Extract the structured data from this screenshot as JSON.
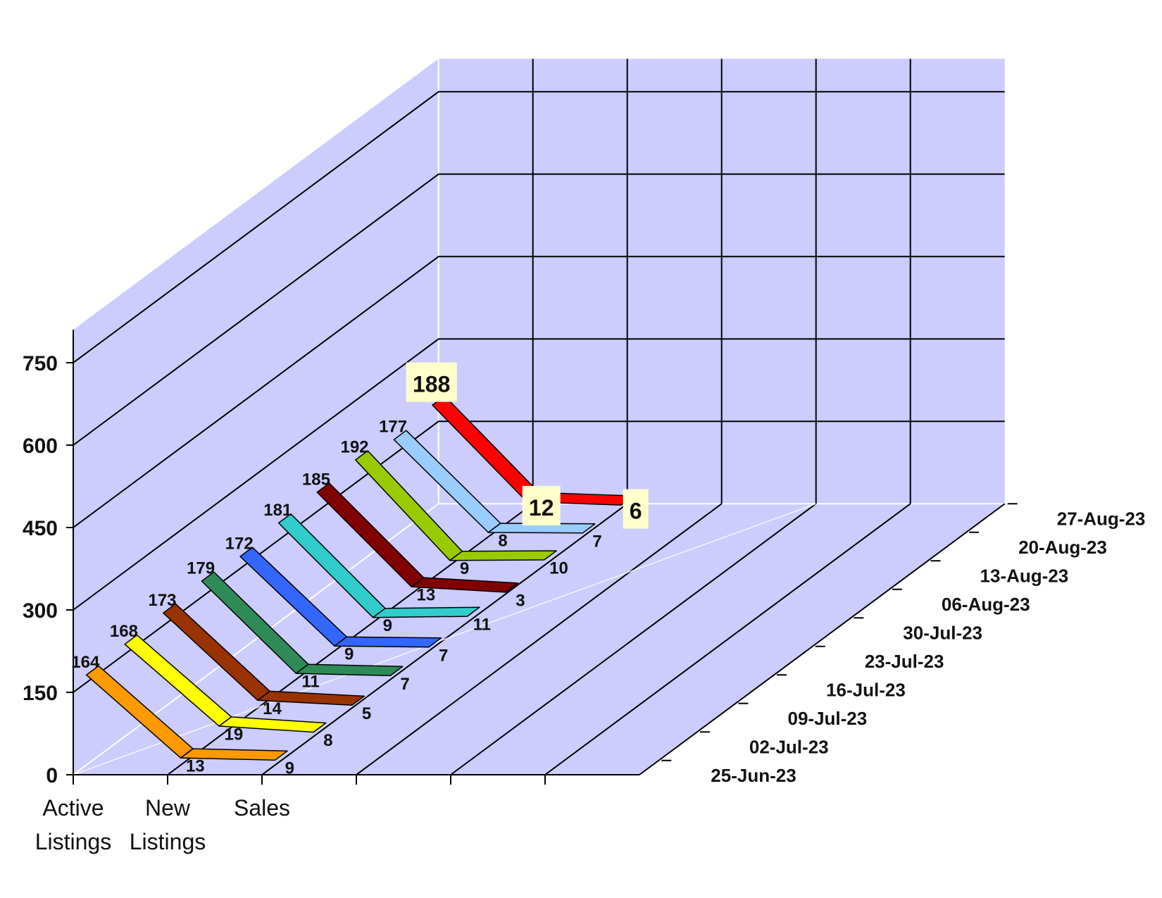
{
  "chart_data": {
    "type": "line",
    "style": "3d-ribbon",
    "title": "",
    "xlabel": "",
    "ylabel": "",
    "categories": [
      "Active Listings",
      "New Listings",
      "Sales"
    ],
    "category_lines": [
      [
        "Active",
        "Listings"
      ],
      [
        "New",
        "Listings"
      ],
      [
        "Sales"
      ]
    ],
    "ylim": [
      0,
      750
    ],
    "yticks": [
      "0",
      "150",
      "300",
      "450",
      "600",
      "750"
    ],
    "grid": true,
    "wall_color": "#ccccff",
    "series": [
      {
        "name": "25-Jun-23",
        "color": "#ff9900",
        "values": [
          164,
          13,
          9
        ]
      },
      {
        "name": "02-Jul-23",
        "color": "#ffff00",
        "values": [
          168,
          19,
          8
        ]
      },
      {
        "name": "09-Jul-23",
        "color": "#993300",
        "values": [
          173,
          14,
          5
        ]
      },
      {
        "name": "16-Jul-23",
        "color": "#2e8b57",
        "values": [
          179,
          11,
          7
        ]
      },
      {
        "name": "23-Jul-23",
        "color": "#3366ff",
        "values": [
          172,
          9,
          7
        ]
      },
      {
        "name": "30-Jul-23",
        "color": "#33cccc",
        "values": [
          181,
          9,
          11
        ]
      },
      {
        "name": "06-Aug-23",
        "color": "#800000",
        "values": [
          185,
          13,
          3
        ]
      },
      {
        "name": "13-Aug-23",
        "color": "#99cc00",
        "values": [
          192,
          9,
          10
        ]
      },
      {
        "name": "20-Aug-23",
        "color": "#99ccff",
        "values": [
          177,
          8,
          7
        ]
      },
      {
        "name": "27-Aug-23",
        "color": "#ff0000",
        "values": [
          188,
          12,
          6
        ],
        "highlight": true
      }
    ]
  }
}
